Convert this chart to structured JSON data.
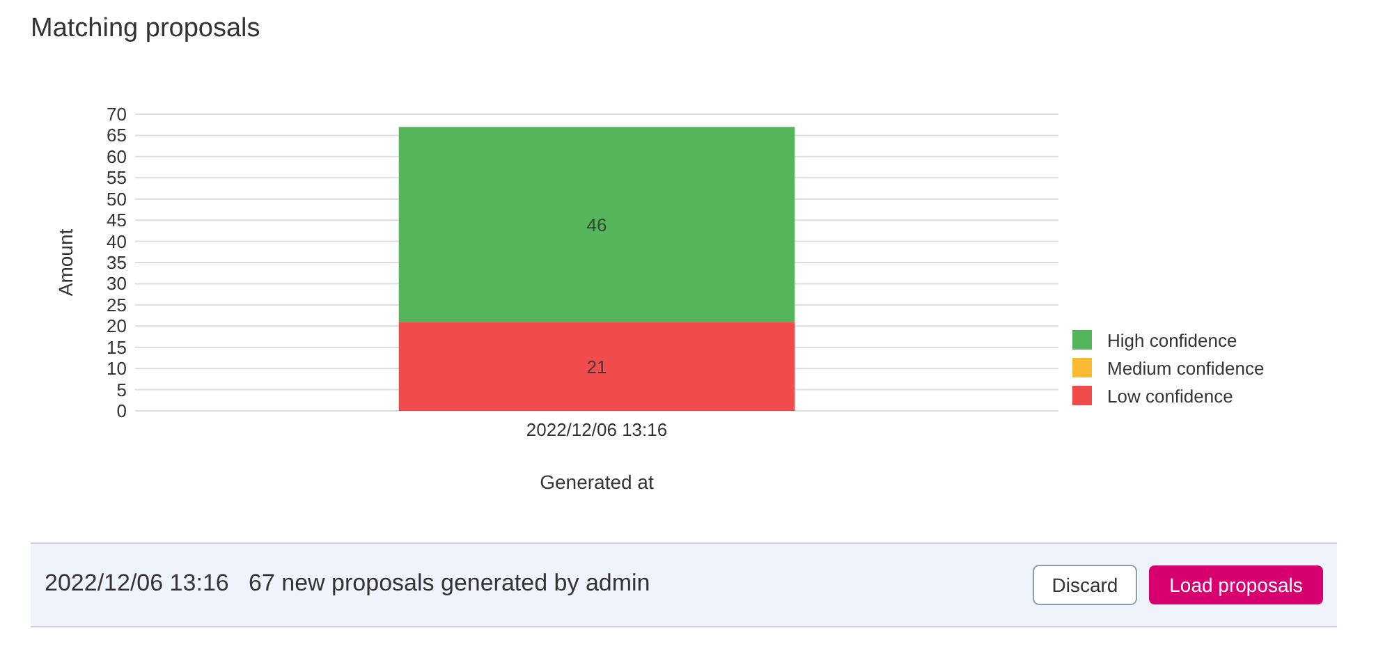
{
  "chart_data": {
    "type": "bar",
    "title": "Matching proposals",
    "xlabel": "Generated at",
    "ylabel": "Amount",
    "categories": [
      "2022/12/06 13:16"
    ],
    "stacked": true,
    "series": [
      {
        "name": "Low confidence",
        "color": "#f04c4c",
        "values": [
          21
        ],
        "value_labels": [
          "21"
        ]
      },
      {
        "name": "Medium confidence",
        "color": "#fbbb33",
        "values": [
          0
        ],
        "value_labels": [
          null
        ]
      },
      {
        "name": "High confidence",
        "color": "#55b55a",
        "values": [
          46
        ],
        "value_labels": [
          "46"
        ]
      }
    ],
    "ylim": [
      0,
      70
    ],
    "yticks": [
      0,
      5,
      10,
      15,
      20,
      25,
      30,
      35,
      40,
      45,
      50,
      55,
      60,
      65,
      70
    ],
    "grid": "y",
    "legend": "right",
    "annotations": [
      "2022/12/06 13:16   67 new proposals generated by admin",
      "Discard",
      "Load proposals"
    ]
  }
}
